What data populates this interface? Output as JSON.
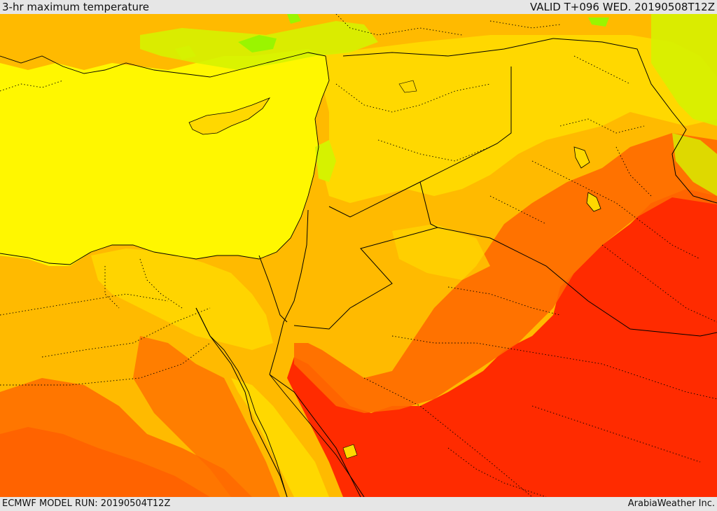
{
  "header": {
    "title": "3-hr maximum temperature",
    "valid": "VALID T+096 WED. 20190508T12Z"
  },
  "footer": {
    "model_run": "ECMWF MODEL RUN: 20190504T12Z",
    "credit": "ArabiaWeather Inc."
  },
  "colors": {
    "sea_yellow": "#fff700",
    "light_yellow": "#ffd800",
    "light_orange": "#ffba00",
    "orange": "#ff9a00",
    "deep_orange": "#ff6a00",
    "red": "#ff2b00",
    "green": "#9af500",
    "light_green": "#d6f200",
    "border_color": "#000000"
  }
}
